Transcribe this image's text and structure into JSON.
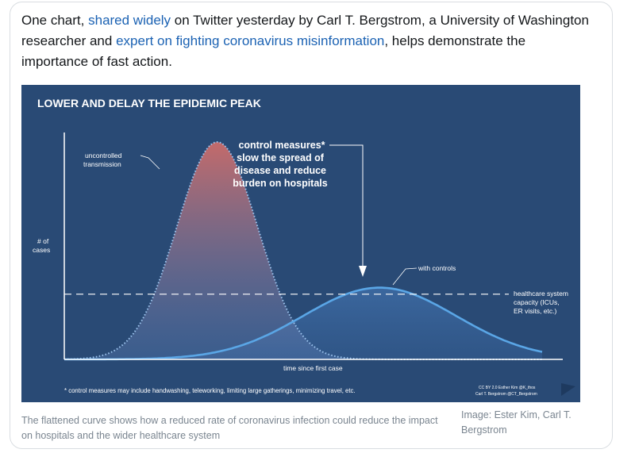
{
  "tweet": {
    "text_1": "One chart, ",
    "link_1": "shared widely",
    "text_2": " on Twitter yesterday by Carl T. Bergstrom, a University of Washington researcher and ",
    "link_2": "expert on fighting coronavirus misinformation",
    "text_3": ", helps demonstrate the importance of fast action."
  },
  "figure": {
    "caption": "The flattened curve shows how a reduced rate of coronavirus infection could reduce the impact on hospitals and the wider healthcare system",
    "credit": "Image: Ester Kim, Carl T. Bergstrom"
  },
  "chart_data": {
    "type": "area",
    "title": "LOWER AND DELAY THE EPIDEMIC PEAK",
    "xlabel": "time since first case",
    "ylabel_line1": "# of",
    "ylabel_line2": "cases",
    "series": [
      {
        "name": "uncontrolled transmission",
        "label_line1": "uncontrolled",
        "label_line2": "transmission",
        "peak_x": 0.32,
        "peak_y": 1.0,
        "width": 0.085,
        "color_top": "#c46a6a",
        "color_bottom": "#5a7fb8",
        "line_style": "dotted"
      },
      {
        "name": "with controls",
        "label": "with controls",
        "peak_x": 0.66,
        "peak_y": 0.33,
        "width": 0.16,
        "color": "#5aa6e6",
        "line_style": "solid"
      }
    ],
    "capacity_line": {
      "value": 0.3,
      "label_line1": "healthcare system",
      "label_line2": "capacity (ICUs,",
      "label_line3": "ER visits, etc.)"
    },
    "annotation": {
      "line1": "control measures*",
      "line2": "slow the spread of",
      "line3": "disease and reduce",
      "line4": "burden on hospitals"
    },
    "footnote": "* control measures may include handwashing, teleworking, limiting large gatherings, minimizing travel, etc.",
    "license_line1": "CC BY 2.0 Esther Kim @K_thos",
    "license_line2": "Carl T. Bergstrom @CT_Bergstrom"
  },
  "colors": {
    "background": "#294a75",
    "link": "#1b62b3"
  }
}
